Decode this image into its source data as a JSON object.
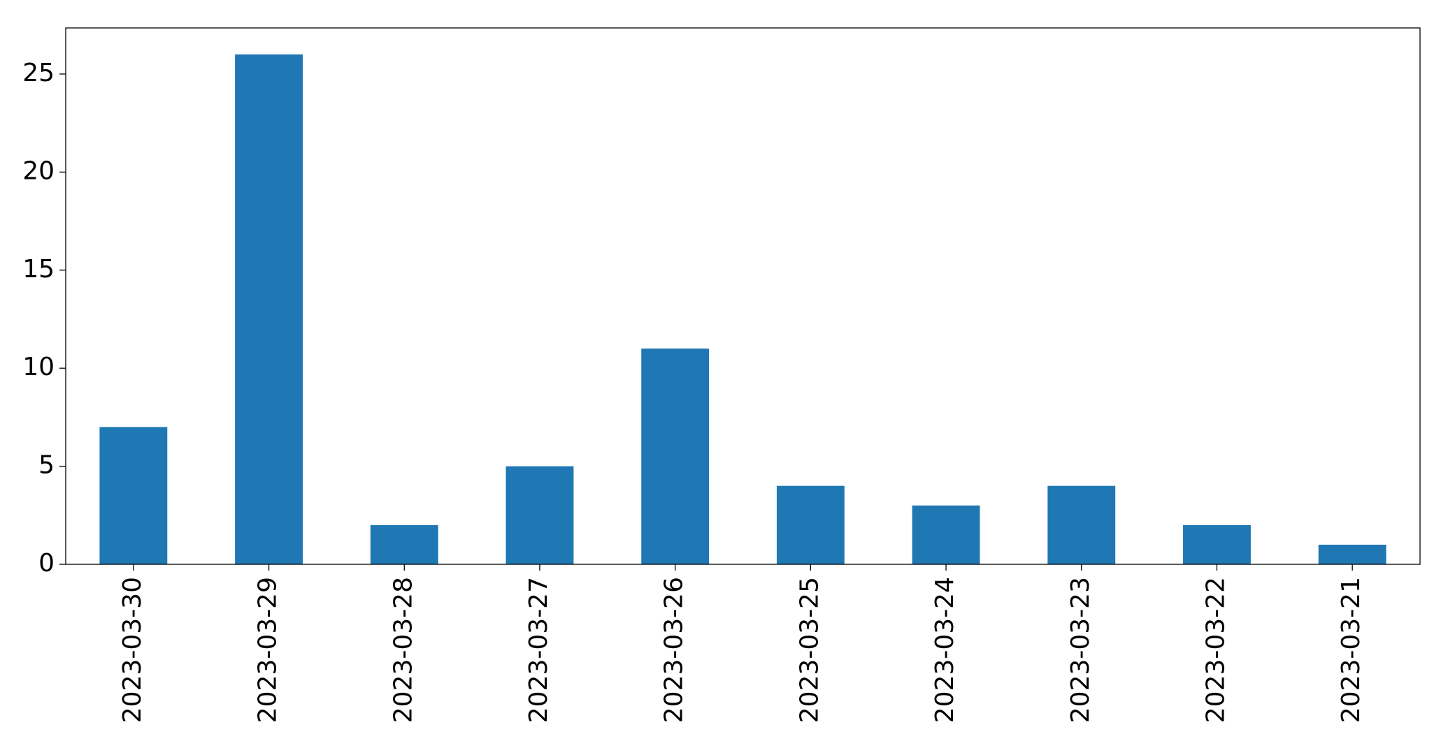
{
  "chart_data": {
    "type": "bar",
    "categories": [
      "2023-03-30",
      "2023-03-29",
      "2023-03-28",
      "2023-03-27",
      "2023-03-26",
      "2023-03-25",
      "2023-03-24",
      "2023-03-23",
      "2023-03-22",
      "2023-03-21"
    ],
    "values": [
      7,
      26,
      2,
      5,
      11,
      4,
      3,
      4,
      2,
      1
    ],
    "color": "#1f77b4",
    "ylim": [
      0,
      27.35
    ],
    "yticks": [
      0,
      5,
      10,
      15,
      20,
      25
    ],
    "grid": false
  }
}
